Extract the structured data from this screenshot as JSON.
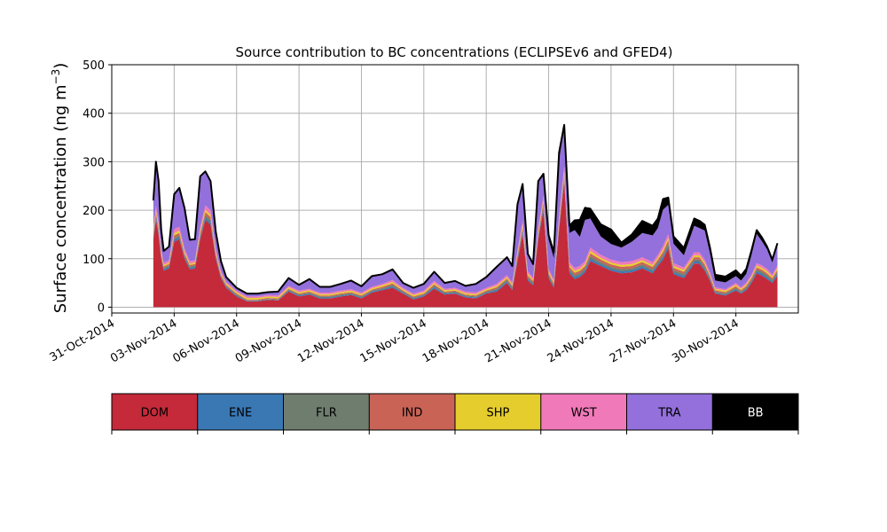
{
  "chart_data": {
    "type": "area",
    "stacked": true,
    "title": "Source contribution to BC concentrations (ECLIPSEv6 and GFED4)",
    "xlabel": "",
    "ylabel": "Surface concentration (ng m",
    "ylabel_unit_sup": "−3",
    "ylabel_close": ")",
    "x_axis": "date",
    "xlim": [
      "2014-10-31",
      "2014-12-03"
    ],
    "ylim": [
      -12,
      500
    ],
    "yticks": [
      0,
      100,
      200,
      300,
      400,
      500
    ],
    "xticks": [
      "31-Oct-2014",
      "03-Nov-2014",
      "06-Nov-2014",
      "09-Nov-2014",
      "12-Nov-2014",
      "15-Nov-2014",
      "18-Nov-2014",
      "21-Nov-2014",
      "24-Nov-2014",
      "27-Nov-2014",
      "30-Nov-2014"
    ],
    "grid": true,
    "legend_placement": "below",
    "categories": [
      "DOM",
      "ENE",
      "FLR",
      "IND",
      "SHP",
      "WST",
      "TRA",
      "BB"
    ],
    "colors": {
      "DOM": "#c42a3a",
      "ENE": "#3a78b4",
      "FLR": "#6e7d6e",
      "IND": "#c96356",
      "SHP": "#e6cd2e",
      "WST": "#f07ab9",
      "TRA": "#9370db",
      "BB": "#000000"
    },
    "legend_text_colors": {
      "DOM": "#000000",
      "ENE": "#000000",
      "FLR": "#000000",
      "IND": "#000000",
      "SHP": "#000000",
      "WST": "#000000",
      "TRA": "#000000",
      "BB": "#ffffff"
    },
    "x": [
      "2014-11-02 00:00",
      "2014-11-02 03:00",
      "2014-11-02 06:00",
      "2014-11-02 09:00",
      "2014-11-02 12:00",
      "2014-11-02 18:00",
      "2014-11-03 00:00",
      "2014-11-03 06:00",
      "2014-11-03 12:00",
      "2014-11-03 18:00",
      "2014-11-04 00:00",
      "2014-11-04 06:00",
      "2014-11-04 12:00",
      "2014-11-04 18:00",
      "2014-11-05 00:00",
      "2014-11-05 06:00",
      "2014-11-05 12:00",
      "2014-11-06 00:00",
      "2014-11-06 12:00",
      "2014-11-07 00:00",
      "2014-11-07 12:00",
      "2014-11-08 00:00",
      "2014-11-08 12:00",
      "2014-11-09 00:00",
      "2014-11-09 12:00",
      "2014-11-10 00:00",
      "2014-11-10 12:00",
      "2014-11-11 00:00",
      "2014-11-11 12:00",
      "2014-11-12 00:00",
      "2014-11-12 12:00",
      "2014-11-13 00:00",
      "2014-11-13 12:00",
      "2014-11-14 00:00",
      "2014-11-14 12:00",
      "2014-11-15 00:00",
      "2014-11-15 12:00",
      "2014-11-16 00:00",
      "2014-11-16 12:00",
      "2014-11-17 00:00",
      "2014-11-17 12:00",
      "2014-11-18 00:00",
      "2014-11-18 12:00",
      "2014-11-19 00:00",
      "2014-11-19 06:00",
      "2014-11-19 12:00",
      "2014-11-19 18:00",
      "2014-11-20 00:00",
      "2014-11-20 06:00",
      "2014-11-20 12:00",
      "2014-11-20 18:00",
      "2014-11-21 00:00",
      "2014-11-21 06:00",
      "2014-11-21 12:00",
      "2014-11-21 18:00",
      "2014-11-22 00:00",
      "2014-11-22 06:00",
      "2014-11-22 12:00",
      "2014-11-22 18:00",
      "2014-11-23 00:00",
      "2014-11-23 12:00",
      "2014-11-24 00:00",
      "2014-11-24 12:00",
      "2014-11-25 00:00",
      "2014-11-25 12:00",
      "2014-11-26 00:00",
      "2014-11-26 06:00",
      "2014-11-26 12:00",
      "2014-11-26 18:00",
      "2014-11-27 00:00",
      "2014-11-27 12:00",
      "2014-11-28 00:00",
      "2014-11-28 06:00",
      "2014-11-28 12:00",
      "2014-11-28 18:00",
      "2014-11-29 00:00",
      "2014-11-29 12:00",
      "2014-11-30 00:00",
      "2014-11-30 06:00",
      "2014-11-30 12:00",
      "2014-11-30 18:00",
      "2014-12-01 00:00",
      "2014-12-01 06:00",
      "2014-12-01 12:00",
      "2014-12-01 18:00",
      "2014-12-02 00:00"
    ],
    "series": [
      {
        "name": "DOM",
        "values": [
          140,
          180,
          150,
          100,
          75,
          80,
          135,
          140,
          100,
          78,
          80,
          140,
          180,
          170,
          100,
          60,
          40,
          22,
          12,
          12,
          15,
          14,
          32,
          22,
          26,
          18,
          18,
          22,
          25,
          18,
          30,
          35,
          40,
          28,
          16,
          22,
          38,
          26,
          28,
          20,
          18,
          28,
          32,
          50,
          35,
          95,
          150,
          55,
          45,
          140,
          200,
          60,
          40,
          160,
          260,
          70,
          58,
          62,
          72,
          95,
          85,
          75,
          70,
          72,
          80,
          70,
          85,
          98,
          122,
          68,
          60,
          90,
          90,
          75,
          55,
          28,
          24,
          34,
          28,
          35,
          50,
          70,
          65,
          58,
          50,
          65
        ]
      },
      {
        "name": "ENE",
        "values": [
          4,
          5,
          4,
          3,
          3,
          3,
          4,
          4,
          3,
          3,
          3,
          4,
          5,
          5,
          3,
          2,
          2,
          2,
          1,
          1,
          1,
          1,
          2,
          2,
          2,
          2,
          2,
          2,
          2,
          2,
          2,
          2,
          3,
          2,
          2,
          2,
          3,
          2,
          2,
          2,
          2,
          2,
          3,
          3,
          3,
          4,
          5,
          3,
          3,
          4,
          5,
          3,
          3,
          4,
          5,
          4,
          4,
          4,
          4,
          5,
          4,
          4,
          4,
          4,
          4,
          4,
          4,
          5,
          5,
          4,
          4,
          4,
          4,
          4,
          3,
          2,
          2,
          3,
          2,
          3,
          3,
          4,
          4,
          4,
          3,
          4
        ]
      },
      {
        "name": "FLR",
        "values": [
          4,
          5,
          4,
          3,
          3,
          3,
          4,
          4,
          3,
          3,
          3,
          4,
          5,
          5,
          3,
          2,
          2,
          2,
          1,
          1,
          1,
          1,
          2,
          2,
          2,
          2,
          2,
          2,
          2,
          2,
          2,
          2,
          3,
          2,
          2,
          2,
          3,
          2,
          2,
          2,
          2,
          2,
          3,
          3,
          3,
          4,
          5,
          3,
          3,
          4,
          5,
          3,
          3,
          4,
          5,
          4,
          4,
          4,
          4,
          5,
          4,
          4,
          4,
          4,
          4,
          4,
          4,
          5,
          5,
          4,
          4,
          4,
          4,
          4,
          3,
          2,
          2,
          3,
          2,
          3,
          3,
          4,
          4,
          4,
          3,
          4
        ]
      },
      {
        "name": "IND",
        "values": [
          5,
          6,
          5,
          4,
          3,
          3,
          5,
          5,
          4,
          3,
          3,
          5,
          6,
          6,
          4,
          3,
          2,
          2,
          2,
          2,
          2,
          2,
          2,
          2,
          2,
          2,
          2,
          2,
          2,
          2,
          2,
          3,
          3,
          2,
          2,
          2,
          3,
          2,
          2,
          2,
          2,
          2,
          3,
          3,
          3,
          4,
          6,
          4,
          3,
          5,
          6,
          4,
          3,
          5,
          6,
          5,
          5,
          5,
          5,
          6,
          5,
          5,
          5,
          5,
          5,
          5,
          5,
          6,
          6,
          5,
          5,
          5,
          5,
          5,
          4,
          3,
          3,
          3,
          3,
          3,
          4,
          4,
          4,
          4,
          4,
          4
        ]
      },
      {
        "name": "SHP",
        "values": [
          5,
          5,
          5,
          4,
          3,
          3,
          5,
          5,
          4,
          3,
          3,
          5,
          5,
          5,
          4,
          3,
          3,
          3,
          3,
          3,
          3,
          3,
          3,
          3,
          3,
          3,
          3,
          3,
          3,
          3,
          3,
          3,
          3,
          3,
          3,
          3,
          3,
          3,
          3,
          3,
          3,
          3,
          3,
          3,
          3,
          4,
          5,
          4,
          3,
          5,
          5,
          4,
          3,
          5,
          5,
          4,
          4,
          4,
          4,
          5,
          4,
          4,
          4,
          4,
          4,
          4,
          4,
          5,
          5,
          4,
          4,
          4,
          4,
          4,
          3,
          3,
          3,
          3,
          3,
          3,
          3,
          4,
          4,
          4,
          3,
          4
        ]
      },
      {
        "name": "WST",
        "values": [
          8,
          9,
          8,
          6,
          5,
          5,
          8,
          8,
          6,
          5,
          5,
          8,
          9,
          9,
          6,
          4,
          3,
          3,
          3,
          3,
          3,
          3,
          3,
          3,
          3,
          3,
          3,
          3,
          3,
          3,
          3,
          3,
          4,
          3,
          3,
          3,
          4,
          3,
          3,
          3,
          3,
          3,
          4,
          4,
          4,
          6,
          8,
          5,
          4,
          7,
          9,
          5,
          4,
          8,
          10,
          6,
          6,
          6,
          6,
          7,
          6,
          6,
          6,
          6,
          6,
          6,
          6,
          7,
          8,
          6,
          5,
          6,
          6,
          6,
          4,
          3,
          3,
          4,
          3,
          4,
          4,
          5,
          5,
          5,
          4,
          5
        ]
      },
      {
        "name": "TRA",
        "values": [
          54,
          90,
          84,
          40,
          24,
          28,
          72,
          80,
          84,
          44,
          43,
          104,
          70,
          60,
          35,
          21,
          10,
          6,
          6,
          6,
          6,
          8,
          16,
          12,
          20,
          12,
          12,
          14,
          18,
          13,
          22,
          20,
          22,
          10,
          12,
          14,
          19,
          12,
          14,
          12,
          18,
          22,
          35,
          37,
          34,
          95,
          75,
          36,
          28,
          95,
          40,
          60,
          45,
          118,
          80,
          60,
          78,
          60,
          85,
          60,
          38,
          32,
          30,
          40,
          50,
          55,
          55,
          75,
          60,
          40,
          25,
          55,
          50,
          60,
          40,
          14,
          14,
          14,
          14,
          18,
          40,
          60,
          50,
          40,
          25,
          40
        ]
      },
      {
        "name": "BB",
        "values": [
          0,
          0,
          0,
          0,
          0,
          0,
          0,
          0,
          0,
          0,
          0,
          0,
          0,
          0,
          0,
          0,
          0,
          0,
          0,
          0,
          0,
          0,
          0,
          0,
          0,
          0,
          0,
          0,
          0,
          0,
          0,
          0,
          0,
          0,
          0,
          0,
          0,
          0,
          0,
          0,
          0,
          0,
          0,
          0,
          0,
          0,
          0,
          0,
          0,
          0,
          5,
          10,
          12,
          15,
          5,
          15,
          20,
          35,
          25,
          20,
          25,
          30,
          10,
          15,
          25,
          20,
          20,
          22,
          15,
          15,
          15,
          15,
          15,
          12,
          12,
          12,
          12,
          12,
          10,
          10,
          10,
          8,
          8,
          6,
          6,
          6
        ]
      }
    ]
  }
}
